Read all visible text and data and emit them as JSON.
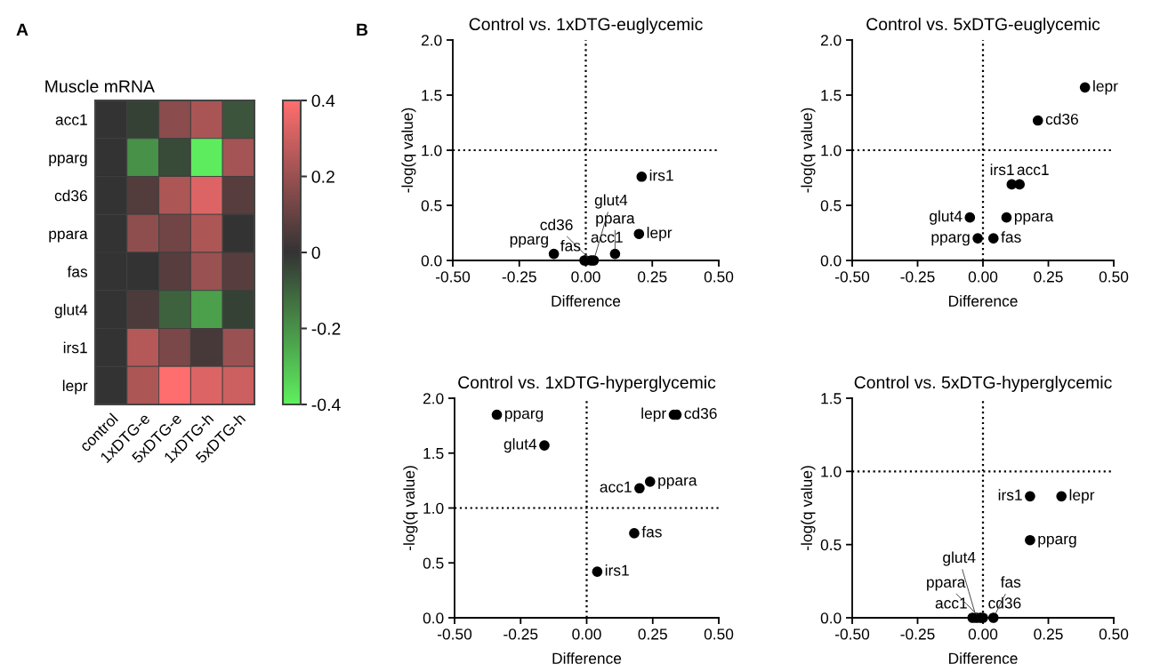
{
  "chart_data": [
    {
      "type": "heatmap",
      "title": "Muscle mRNA",
      "annotations": [
        "A"
      ],
      "categories": [
        "control",
        "1xDTG-e",
        "5xDTG-e",
        "1xDTG-h",
        "5xDTG-h"
      ],
      "y_categories": [
        "acc1",
        "pparg",
        "cd36",
        "ppara",
        "fas",
        "glut4",
        "irs1",
        "lepr"
      ],
      "cells": [
        [
          0,
          -0.03,
          0.17,
          0.23,
          -0.07
        ],
        [
          0,
          -0.2,
          -0.05,
          -0.39,
          0.22
        ],
        [
          0,
          0.06,
          0.24,
          0.33,
          0.07
        ],
        [
          0,
          0.18,
          0.12,
          0.24,
          0.0
        ],
        [
          0,
          0.0,
          0.07,
          0.2,
          0.07
        ],
        [
          0,
          0.05,
          -0.1,
          -0.23,
          -0.03
        ],
        [
          0,
          0.25,
          0.14,
          0.04,
          0.2
        ],
        [
          0,
          0.24,
          0.4,
          0.33,
          0.3
        ]
      ],
      "clim": [
        -0.4,
        0.4
      ],
      "cticks": [
        0.4,
        0.2,
        0,
        -0.2,
        -0.4
      ]
    },
    {
      "type": "scatter",
      "title": "Control vs. 1xDTG-euglycemic",
      "xlabel": "Difference",
      "ylabel": "-log(q value)",
      "marker": "circle",
      "grid": false,
      "series": [
        {
          "color": "#000000",
          "x": [
            -0.005,
            -0.12,
            0.02,
            0.11,
            0.0,
            0.03,
            0.21,
            0.2
          ],
          "values": [
            0,
            0.06,
            0,
            0.06,
            0,
            0,
            0.76,
            0.24
          ]
        }
      ],
      "annotations": [
        {
          "text": "B"
        },
        {
          "text": "acc1",
          "x": -0.005,
          "y": 0
        },
        {
          "text": "pparg",
          "x": -0.12,
          "y": 0.06
        },
        {
          "text": "cd36",
          "x": 0.02,
          "y": 0
        },
        {
          "text": "ppara",
          "x": 0.11,
          "y": 0.06
        },
        {
          "text": "fas",
          "x": 0.0,
          "y": 0
        },
        {
          "text": "glut4",
          "x": 0.03,
          "y": 0
        },
        {
          "text": "irs1",
          "x": 0.21,
          "y": 0.76
        },
        {
          "text": "lepr",
          "x": 0.2,
          "y": 0.24
        }
      ],
      "xlim": [
        -0.5,
        0.5
      ],
      "ylim": [
        0,
        2.0
      ],
      "xticks": [
        {
          "value": -0.5,
          "label": "-0.50"
        },
        {
          "value": -0.25,
          "label": "-0.25"
        },
        {
          "value": 0,
          "label": "0.00"
        },
        {
          "value": 0.25,
          "label": "0.25"
        },
        {
          "value": 0.5,
          "label": "0.50"
        }
      ],
      "yticks": [
        {
          "value": 0,
          "label": "0.0"
        },
        {
          "value": 0.5,
          "label": "0.5"
        },
        {
          "value": 1.0,
          "label": "1.0"
        },
        {
          "value": 1.5,
          "label": "1.5"
        },
        {
          "value": 2.0,
          "label": "2.0"
        }
      ],
      "ref_lines": [
        {
          "axis": "y",
          "value": 1.0,
          "line_style": "dotted",
          "color": "#000000"
        },
        {
          "axis": "x",
          "value": 0,
          "line_style": "dotted",
          "color": "#000000"
        }
      ]
    },
    {
      "type": "scatter",
      "title": "Control vs. 5xDTG-euglycemic",
      "xlabel": "Difference",
      "ylabel": "-log(q value)",
      "marker": "circle",
      "grid": false,
      "series": [
        {
          "color": "#000000",
          "x": [
            0.11,
            -0.02,
            0.21,
            0.09,
            0.04,
            -0.05,
            0.14,
            0.39
          ],
          "values": [
            0.69,
            0.2,
            1.27,
            0.39,
            0.2,
            0.39,
            0.69,
            1.57
          ]
        }
      ],
      "annotations": [
        {
          "text": "acc1",
          "x": 0.11,
          "y": 0.69
        },
        {
          "text": "pparg",
          "x": -0.02,
          "y": 0.2
        },
        {
          "text": "cd36",
          "x": 0.21,
          "y": 1.27
        },
        {
          "text": "ppara",
          "x": 0.09,
          "y": 0.39
        },
        {
          "text": "fas",
          "x": 0.04,
          "y": 0.2
        },
        {
          "text": "glut4",
          "x": -0.05,
          "y": 0.39
        },
        {
          "text": "irs1",
          "x": 0.14,
          "y": 0.69
        },
        {
          "text": "lepr",
          "x": 0.39,
          "y": 1.57
        }
      ],
      "xlim": [
        -0.5,
        0.5
      ],
      "ylim": [
        0,
        2.0
      ],
      "xticks": [
        {
          "value": -0.5,
          "label": "-0.50"
        },
        {
          "value": -0.25,
          "label": "-0.25"
        },
        {
          "value": 0,
          "label": "0.00"
        },
        {
          "value": 0.25,
          "label": "0.25"
        },
        {
          "value": 0.5,
          "label": "0.50"
        }
      ],
      "yticks": [
        {
          "value": 0,
          "label": "0.0"
        },
        {
          "value": 0.5,
          "label": "0.5"
        },
        {
          "value": 1.0,
          "label": "1.0"
        },
        {
          "value": 1.5,
          "label": "1.5"
        },
        {
          "value": 2.0,
          "label": "2.0"
        }
      ],
      "ref_lines": [
        {
          "axis": "y",
          "value": 1.0,
          "line_style": "dotted",
          "color": "#000000"
        },
        {
          "axis": "x",
          "value": 0,
          "line_style": "dotted",
          "color": "#000000"
        }
      ]
    },
    {
      "type": "scatter",
      "title": "Control vs. 1xDTG-hyperglycemic",
      "xlabel": "Difference",
      "ylabel": "-log(q value)",
      "marker": "circle",
      "grid": false,
      "series": [
        {
          "color": "#000000",
          "x": [
            0.2,
            -0.34,
            0.34,
            0.24,
            0.18,
            -0.16,
            0.04,
            0.33
          ],
          "values": [
            1.18,
            1.85,
            1.85,
            1.24,
            0.77,
            1.57,
            0.42,
            1.85
          ]
        }
      ],
      "annotations": [
        {
          "text": "acc1",
          "x": 0.2,
          "y": 1.18
        },
        {
          "text": "pparg",
          "x": -0.34,
          "y": 1.85
        },
        {
          "text": "cd36",
          "x": 0.34,
          "y": 1.85
        },
        {
          "text": "ppara",
          "x": 0.24,
          "y": 1.24
        },
        {
          "text": "fas",
          "x": 0.18,
          "y": 0.77
        },
        {
          "text": "glut4",
          "x": -0.16,
          "y": 1.57
        },
        {
          "text": "irs1",
          "x": 0.04,
          "y": 0.42
        },
        {
          "text": "lepr",
          "x": 0.33,
          "y": 1.85
        }
      ],
      "xlim": [
        -0.5,
        0.5
      ],
      "ylim": [
        0,
        2.0
      ],
      "xticks": [
        {
          "value": -0.5,
          "label": "-0.50"
        },
        {
          "value": -0.25,
          "label": "-0.25"
        },
        {
          "value": 0,
          "label": "0.00"
        },
        {
          "value": 0.25,
          "label": "0.25"
        },
        {
          "value": 0.5,
          "label": "0.50"
        }
      ],
      "yticks": [
        {
          "value": 0,
          "label": "0.0"
        },
        {
          "value": 0.5,
          "label": "0.5"
        },
        {
          "value": 1.0,
          "label": "1.0"
        },
        {
          "value": 1.5,
          "label": "1.5"
        },
        {
          "value": 2.0,
          "label": "2.0"
        }
      ],
      "ref_lines": [
        {
          "axis": "y",
          "value": 1.0,
          "line_style": "dotted",
          "color": "#000000"
        },
        {
          "axis": "x",
          "value": 0,
          "line_style": "dotted",
          "color": "#000000"
        }
      ]
    },
    {
      "type": "scatter",
      "title": "Control vs. 5xDTG-hyperglycemic",
      "xlabel": "Difference",
      "ylabel": "-log(q value)",
      "marker": "circle",
      "grid": false,
      "series": [
        {
          "color": "#000000",
          "x": [
            -0.04,
            0.18,
            0.0,
            -0.01,
            0.04,
            -0.025,
            0.18,
            0.3
          ],
          "values": [
            0,
            0.53,
            0,
            0,
            0,
            0,
            0.83,
            0.83
          ]
        }
      ],
      "annotations": [
        {
          "text": "acc1",
          "x": -0.04,
          "y": 0
        },
        {
          "text": "pparg",
          "x": 0.18,
          "y": 0.53
        },
        {
          "text": "cd36",
          "x": 0.0,
          "y": 0
        },
        {
          "text": "ppara",
          "x": -0.01,
          "y": 0
        },
        {
          "text": "fas",
          "x": 0.04,
          "y": 0
        },
        {
          "text": "glut4",
          "x": -0.025,
          "y": 0
        },
        {
          "text": "irs1",
          "x": 0.18,
          "y": 0.83
        },
        {
          "text": "lepr",
          "x": 0.3,
          "y": 0.83
        }
      ],
      "xlim": [
        -0.5,
        0.5
      ],
      "ylim": [
        0,
        1.5
      ],
      "xticks": [
        {
          "value": -0.5,
          "label": "-0.50"
        },
        {
          "value": -0.25,
          "label": "-0.25"
        },
        {
          "value": 0,
          "label": "0.00"
        },
        {
          "value": 0.25,
          "label": "0.25"
        },
        {
          "value": 0.5,
          "label": "0.50"
        }
      ],
      "yticks": [
        {
          "value": 0,
          "label": "0.0"
        },
        {
          "value": 0.5,
          "label": "0.5"
        },
        {
          "value": 1.0,
          "label": "1.0"
        },
        {
          "value": 1.5,
          "label": "1.5"
        }
      ],
      "ref_lines": [
        {
          "axis": "y",
          "value": 1.0,
          "line_style": "dotted",
          "color": "#000000"
        },
        {
          "axis": "x",
          "value": 0,
          "line_style": "dotted",
          "color": "#000000"
        }
      ]
    }
  ]
}
